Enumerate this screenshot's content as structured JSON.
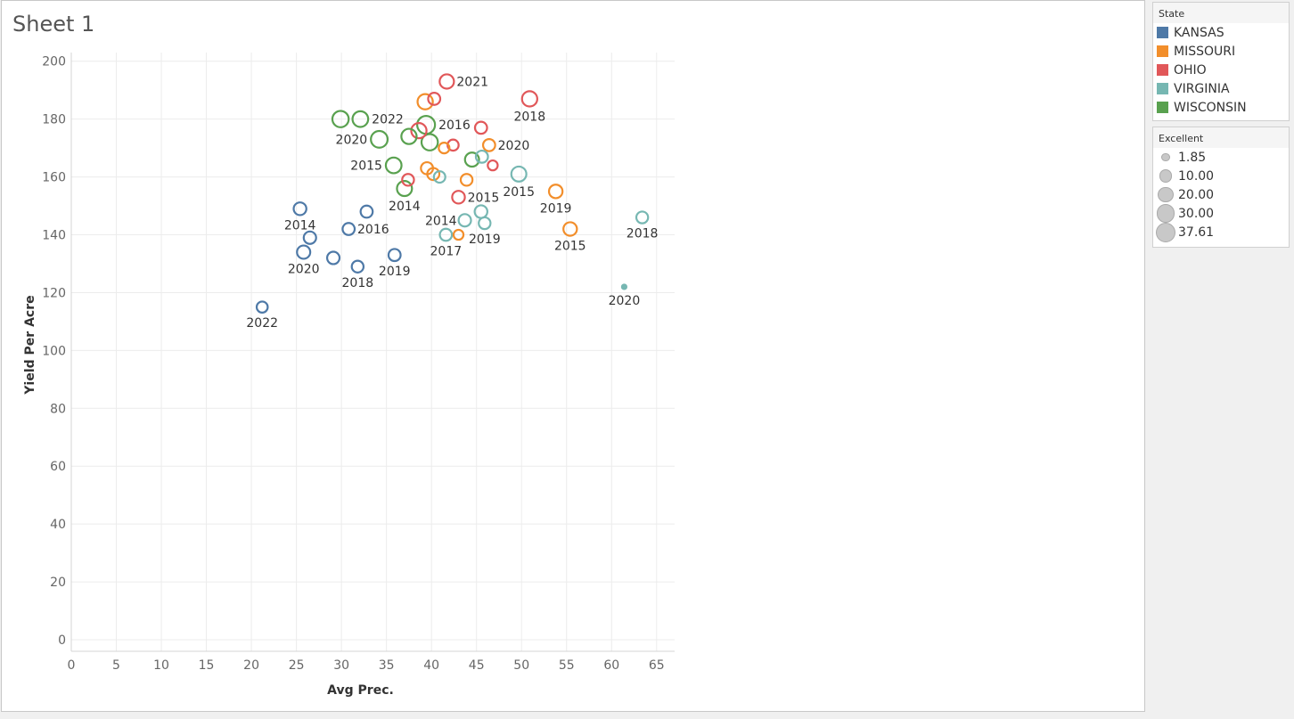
{
  "sheet": {
    "title": "Sheet 1"
  },
  "legend_state": {
    "title": "State",
    "items": [
      {
        "label": "KANSAS",
        "color": "#4e79a7"
      },
      {
        "label": "MISSOURI",
        "color": "#f28e2b"
      },
      {
        "label": "OHIO",
        "color": "#e15759"
      },
      {
        "label": "VIRGINIA",
        "color": "#76b7b2"
      },
      {
        "label": "WISCONSIN",
        "color": "#59a14f"
      }
    ]
  },
  "legend_size": {
    "title": "Excellent",
    "items": [
      "1.85",
      "10.00",
      "20.00",
      "30.00",
      "37.61"
    ]
  },
  "chart_data": {
    "type": "scatter",
    "xlabel": "Avg Prec.",
    "ylabel": "Yield Per Acre",
    "xlim": [
      0,
      67
    ],
    "ylim": [
      -4,
      203
    ],
    "xticks": [
      0,
      5,
      10,
      15,
      20,
      25,
      30,
      35,
      40,
      45,
      50,
      55,
      60,
      65
    ],
    "yticks": [
      0,
      20,
      40,
      60,
      80,
      100,
      120,
      140,
      160,
      180,
      200
    ],
    "grid": true,
    "size_field": "Excellent",
    "color_field": "State",
    "points": [
      {
        "state": "KANSAS",
        "x": 21.2,
        "y": 115,
        "size": 10,
        "label": "2022"
      },
      {
        "state": "KANSAS",
        "x": 25.4,
        "y": 149,
        "size": 15,
        "label": "2014"
      },
      {
        "state": "KANSAS",
        "x": 25.8,
        "y": 134,
        "size": 17,
        "label": "2020"
      },
      {
        "state": "KANSAS",
        "x": 26.5,
        "y": 139,
        "size": 14,
        "label": ""
      },
      {
        "state": "KANSAS",
        "x": 29.1,
        "y": 132,
        "size": 14,
        "label": ""
      },
      {
        "state": "KANSAS",
        "x": 30.8,
        "y": 142,
        "size": 13,
        "label": "2016"
      },
      {
        "state": "KANSAS",
        "x": 31.8,
        "y": 129,
        "size": 12,
        "label": "2018"
      },
      {
        "state": "KANSAS",
        "x": 32.8,
        "y": 148,
        "size": 13,
        "label": ""
      },
      {
        "state": "KANSAS",
        "x": 35.9,
        "y": 133,
        "size": 13,
        "label": "2019"
      },
      {
        "state": "MISSOURI",
        "x": 39.3,
        "y": 186,
        "size": 25,
        "label": ""
      },
      {
        "state": "MISSOURI",
        "x": 39.5,
        "y": 163,
        "size": 13,
        "label": ""
      },
      {
        "state": "MISSOURI",
        "x": 40.2,
        "y": 161,
        "size": 13,
        "label": ""
      },
      {
        "state": "MISSOURI",
        "x": 41.4,
        "y": 170,
        "size": 9,
        "label": ""
      },
      {
        "state": "MISSOURI",
        "x": 43.0,
        "y": 140,
        "size": 7,
        "label": ""
      },
      {
        "state": "MISSOURI",
        "x": 43.9,
        "y": 159,
        "size": 12,
        "label": ""
      },
      {
        "state": "MISSOURI",
        "x": 46.4,
        "y": 171,
        "size": 13,
        "label": "2020"
      },
      {
        "state": "MISSOURI",
        "x": 53.8,
        "y": 155,
        "size": 18,
        "label": "2019"
      },
      {
        "state": "MISSOURI",
        "x": 55.4,
        "y": 142,
        "size": 18,
        "label": "2015"
      },
      {
        "state": "OHIO",
        "x": 37.4,
        "y": 159,
        "size": 12,
        "label": ""
      },
      {
        "state": "OHIO",
        "x": 38.6,
        "y": 176,
        "size": 25,
        "label": ""
      },
      {
        "state": "OHIO",
        "x": 40.3,
        "y": 187,
        "size": 13,
        "label": ""
      },
      {
        "state": "OHIO",
        "x": 41.7,
        "y": 193,
        "size": 21,
        "label": "2021"
      },
      {
        "state": "OHIO",
        "x": 42.4,
        "y": 171,
        "size": 10,
        "label": ""
      },
      {
        "state": "OHIO",
        "x": 43.0,
        "y": 153,
        "size": 15,
        "label": "2015"
      },
      {
        "state": "OHIO",
        "x": 45.5,
        "y": 177,
        "size": 13,
        "label": ""
      },
      {
        "state": "OHIO",
        "x": 46.8,
        "y": 164,
        "size": 7,
        "label": ""
      },
      {
        "state": "OHIO",
        "x": 50.9,
        "y": 187,
        "size": 25,
        "label": "2018"
      },
      {
        "state": "VIRGINIA",
        "x": 40.9,
        "y": 160,
        "size": 11,
        "label": ""
      },
      {
        "state": "VIRGINIA",
        "x": 41.6,
        "y": 140,
        "size": 13,
        "label": "2017"
      },
      {
        "state": "VIRGINIA",
        "x": 43.7,
        "y": 145,
        "size": 14,
        "label": "2014"
      },
      {
        "state": "VIRGINIA",
        "x": 45.5,
        "y": 148,
        "size": 15,
        "label": ""
      },
      {
        "state": "VIRGINIA",
        "x": 45.6,
        "y": 167,
        "size": 13,
        "label": ""
      },
      {
        "state": "VIRGINIA",
        "x": 45.9,
        "y": 144,
        "size": 12,
        "label": "2019"
      },
      {
        "state": "VIRGINIA",
        "x": 49.7,
        "y": 161,
        "size": 24,
        "label": "2015"
      },
      {
        "state": "VIRGINIA",
        "x": 61.4,
        "y": 122,
        "size": 1.85,
        "label": "2020"
      },
      {
        "state": "VIRGINIA",
        "x": 63.4,
        "y": 146,
        "size": 12,
        "label": "2018"
      },
      {
        "state": "WISCONSIN",
        "x": 29.9,
        "y": 180,
        "size": 30,
        "label": ""
      },
      {
        "state": "WISCONSIN",
        "x": 32.1,
        "y": 180,
        "size": 27,
        "label": "2022"
      },
      {
        "state": "WISCONSIN",
        "x": 34.2,
        "y": 173,
        "size": 32,
        "label": "2020"
      },
      {
        "state": "WISCONSIN",
        "x": 35.8,
        "y": 164,
        "size": 27,
        "label": "2015"
      },
      {
        "state": "WISCONSIN",
        "x": 37.0,
        "y": 156,
        "size": 24,
        "label": "2014"
      },
      {
        "state": "WISCONSIN",
        "x": 37.5,
        "y": 174,
        "size": 25,
        "label": ""
      },
      {
        "state": "WISCONSIN",
        "x": 39.4,
        "y": 178,
        "size": 37.61,
        "label": "2016"
      },
      {
        "state": "WISCONSIN",
        "x": 39.8,
        "y": 172,
        "size": 30,
        "label": ""
      },
      {
        "state": "WISCONSIN",
        "x": 44.5,
        "y": 166,
        "size": 20,
        "label": ""
      }
    ]
  }
}
